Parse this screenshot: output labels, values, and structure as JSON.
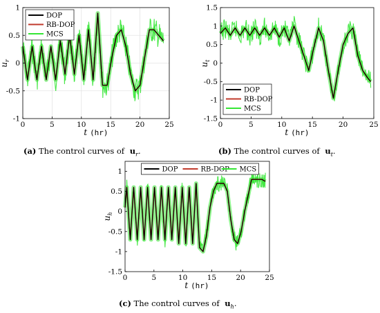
{
  "chart_data": [
    {
      "type": "line",
      "caption_tag": "(a)",
      "caption_text": "The control curves of",
      "caption_symbol": "u",
      "caption_sub": "r",
      "ylabel": "u",
      "ylabel_sub": "r",
      "xlabel_t": "t",
      "xlabel_unit": "(hr)",
      "xlim": [
        0,
        25
      ],
      "ylim": [
        -1,
        1
      ],
      "xticks": [
        "0",
        "5",
        "10",
        "15",
        "20",
        "25"
      ],
      "yticks": [
        "1",
        "0.5",
        "0",
        "-0.5",
        "-1"
      ],
      "grid": true,
      "legend_position": "top-left",
      "legend_layout": "vertical",
      "series": [
        {
          "name": "DOP",
          "color": "#000000"
        },
        {
          "name": "RB-DOP",
          "color": "#c0392b"
        },
        {
          "name": "MCS",
          "color": "#33e633"
        }
      ],
      "mcs_band": 0.24,
      "x": [
        0,
        0.8,
        1.6,
        2.4,
        3.2,
        4.0,
        4.8,
        5.6,
        6.4,
        7.2,
        8.0,
        8.8,
        9.6,
        10.4,
        11.2,
        12.0,
        12.8,
        13.6,
        14.4,
        15.2,
        16.0,
        16.8,
        17.6,
        18.4,
        19.2,
        20.0,
        20.8,
        21.6,
        22.4,
        23.2,
        24.0
      ],
      "y": [
        0.3,
        -0.3,
        0.3,
        -0.3,
        0.3,
        -0.3,
        0.3,
        -0.3,
        0.4,
        -0.2,
        0.5,
        -0.2,
        0.5,
        -0.3,
        0.6,
        -0.3,
        0.9,
        -0.4,
        -0.4,
        0.1,
        0.5,
        0.6,
        0.3,
        -0.2,
        -0.5,
        -0.4,
        0.1,
        0.6,
        0.6,
        0.5,
        0.4
      ]
    },
    {
      "type": "line",
      "caption_tag": "(b)",
      "caption_text": "The control curves of",
      "caption_symbol": "u",
      "caption_sub": "t",
      "ylabel": "u",
      "ylabel_sub": "t",
      "xlabel_t": "t",
      "xlabel_unit": "(hr)",
      "xlim": [
        0,
        25
      ],
      "ylim": [
        -1.5,
        1.5
      ],
      "xticks": [
        "0",
        "5",
        "10",
        "15",
        "20",
        "25"
      ],
      "yticks": [
        "1.5",
        "1",
        "0.5",
        "0",
        "-0.5",
        "-1",
        "-1.5"
      ],
      "grid": false,
      "legend_position": "bottom-left",
      "legend_layout": "vertical",
      "series": [
        {
          "name": "DOP",
          "color": "#000000"
        },
        {
          "name": "RB-DOP",
          "color": "#c0392b"
        },
        {
          "name": "MCS",
          "color": "#33e633"
        }
      ],
      "mcs_band": 0.28,
      "x": [
        0,
        0.8,
        1.6,
        2.4,
        3.2,
        4.0,
        4.8,
        5.6,
        6.4,
        7.2,
        8.0,
        8.8,
        9.6,
        10.4,
        11.2,
        12.0,
        12.8,
        13.6,
        14.4,
        15.2,
        16.0,
        16.8,
        17.6,
        18.4,
        19.2,
        20.0,
        20.8,
        21.6,
        22.4,
        23.2,
        24.0,
        24.5
      ],
      "y": [
        0.8,
        0.95,
        0.75,
        0.95,
        0.75,
        0.95,
        0.75,
        0.95,
        0.75,
        0.95,
        0.75,
        0.95,
        0.7,
        0.95,
        0.6,
        1.0,
        0.6,
        0.2,
        -0.2,
        0.4,
        0.95,
        0.6,
        -0.2,
        -0.95,
        -0.2,
        0.5,
        0.8,
        0.95,
        0.2,
        -0.2,
        -0.4,
        -0.5
      ]
    },
    {
      "type": "line",
      "caption_tag": "(c)",
      "caption_text": "The control curves of",
      "caption_symbol": "u",
      "caption_sub": "h",
      "ylabel": "u",
      "ylabel_sub": "h",
      "xlabel_t": "t",
      "xlabel_unit": "(hr)",
      "xlim": [
        0,
        25
      ],
      "ylim": [
        -1.5,
        1.25
      ],
      "xticks": [
        "0",
        "5",
        "10",
        "15",
        "20",
        "25"
      ],
      "yticks": [
        "1",
        "0.5",
        "0",
        "-0.5",
        "-1",
        "-1.5"
      ],
      "grid": false,
      "legend_position": "top",
      "legend_layout": "horizontal",
      "series": [
        {
          "name": "DOP",
          "color": "#000000"
        },
        {
          "name": "RB-DOP",
          "color": "#c0392b"
        },
        {
          "name": "MCS",
          "color": "#33e633"
        }
      ],
      "mcs_band": 0.22,
      "x": [
        0,
        0.3,
        0.9,
        1.5,
        2.1,
        2.7,
        3.3,
        3.9,
        4.5,
        5.1,
        5.7,
        6.3,
        6.9,
        7.5,
        8.1,
        8.7,
        9.3,
        9.9,
        10.5,
        11.1,
        11.7,
        12.3,
        12.9,
        13.5,
        14.1,
        14.7,
        15.3,
        15.9,
        16.5,
        17.1,
        17.7,
        18.3,
        18.9,
        19.5,
        20.1,
        20.7,
        21.3,
        21.9,
        22.5,
        23.1,
        23.7,
        24.3
      ],
      "y": [
        0.1,
        0.6,
        -0.7,
        0.6,
        -0.7,
        0.6,
        -0.7,
        0.6,
        -0.7,
        0.6,
        -0.7,
        0.6,
        -0.7,
        0.6,
        -0.7,
        0.6,
        -0.8,
        0.6,
        -0.8,
        0.6,
        -0.8,
        0.7,
        -0.9,
        -1.0,
        -0.6,
        0.1,
        0.5,
        0.7,
        0.7,
        0.7,
        0.5,
        -0.2,
        -0.7,
        -0.8,
        -0.5,
        0.0,
        0.4,
        0.8,
        0.8,
        0.8,
        0.8,
        0.75
      ]
    }
  ]
}
